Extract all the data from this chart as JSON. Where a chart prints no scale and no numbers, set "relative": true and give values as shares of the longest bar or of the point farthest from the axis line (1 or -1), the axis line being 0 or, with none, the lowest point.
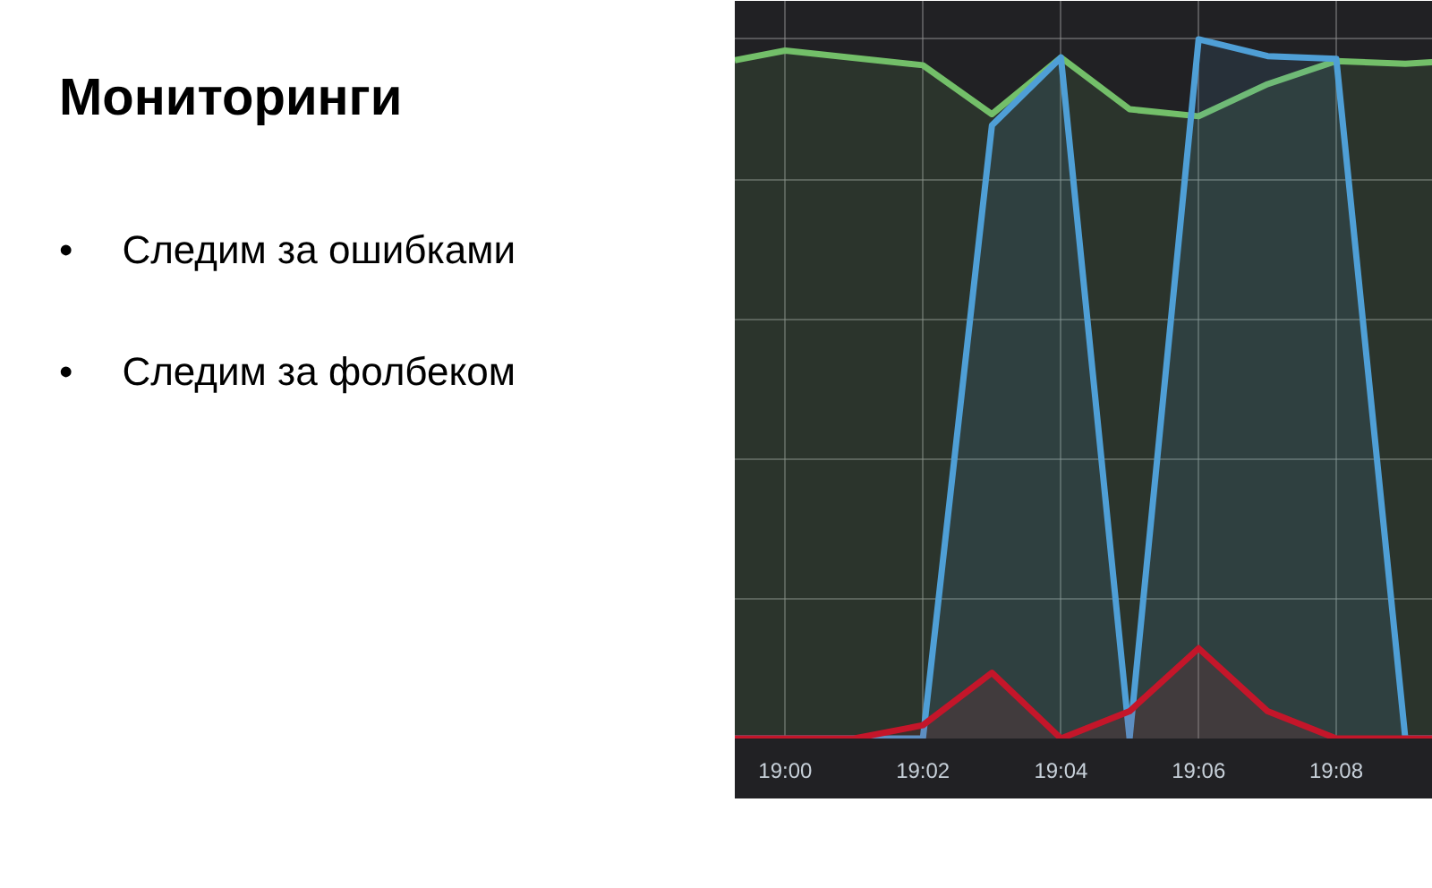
{
  "chart_data": {
    "type": "area",
    "title": "Мониторинги",
    "annotations": [
      "•\tСледим за ошибками",
      "•\tСледим за фолбеком"
    ],
    "x": [
      18.9878,
      19.0,
      19.0167,
      19.0333,
      19.05,
      19.0667,
      19.0833,
      19.1,
      19.1167,
      19.1333,
      19.15,
      19.161
    ],
    "xlim": [
      18.9878,
      19.161
    ],
    "xticks": [
      {
        "value": 19.0,
        "label": "19:00"
      },
      {
        "value": 19.0333,
        "label": "19:02"
      },
      {
        "value": 19.0667,
        "label": "19:04"
      },
      {
        "value": 19.1,
        "label": "19:06"
      },
      {
        "value": 19.1333,
        "label": "19:08"
      }
    ],
    "relative": true,
    "grid": true,
    "line_style": "solid",
    "series": [
      {
        "color": "#73bf69",
        "values": [
          0.97,
          0.984,
          null,
          0.963,
          0.893,
          0.974,
          0.9,
          0.89,
          0.936,
          0.969,
          0.965,
          0.969
        ]
      },
      {
        "color": "#4f9fd6",
        "values": [
          0,
          0,
          0,
          0,
          0.877,
          0.974,
          0,
          1.0,
          0.976,
          0.972,
          0,
          0
        ]
      },
      {
        "color": "#c4162a",
        "values": [
          0,
          0,
          0,
          0.019,
          0.094,
          0,
          0.039,
          0.129,
          0.039,
          0,
          0,
          0
        ]
      }
    ]
  }
}
